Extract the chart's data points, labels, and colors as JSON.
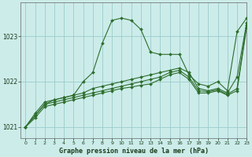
{
  "title": "Graphe pression niveau de la mer (hPa)",
  "background_color": "#ccecea",
  "grid_color": "#99ccca",
  "line_color": "#2d6e2d",
  "xlim": [
    -0.5,
    23
  ],
  "ylim": [
    1020.75,
    1023.75
  ],
  "yticks": [
    1021,
    1022,
    1023
  ],
  "xticks": [
    0,
    1,
    2,
    3,
    4,
    5,
    6,
    7,
    8,
    9,
    10,
    11,
    12,
    13,
    14,
    15,
    16,
    17,
    18,
    19,
    20,
    21,
    22,
    23
  ],
  "series": [
    [
      1021.0,
      1021.3,
      1021.55,
      1021.6,
      1021.65,
      1021.7,
      1022.0,
      1022.2,
      1022.85,
      1023.35,
      1023.4,
      1023.35,
      1023.15,
      1022.65,
      1022.6,
      1022.6,
      1022.6,
      1022.15,
      1021.95,
      1021.9,
      1022.0,
      1021.8,
      1023.1,
      1023.4
    ],
    [
      1021.0,
      1021.25,
      1021.5,
      1021.6,
      1021.65,
      1021.7,
      1021.75,
      1021.85,
      1021.9,
      1021.95,
      1022.0,
      1022.05,
      1022.1,
      1022.15,
      1022.2,
      1022.25,
      1022.3,
      1022.2,
      1021.85,
      1021.8,
      1021.85,
      1021.75,
      1022.1,
      1023.3
    ],
    [
      1021.0,
      1021.25,
      1021.5,
      1021.55,
      1021.6,
      1021.65,
      1021.7,
      1021.75,
      1021.8,
      1021.85,
      1021.9,
      1021.95,
      1022.0,
      1022.05,
      1022.1,
      1022.2,
      1022.25,
      1022.1,
      1021.8,
      1021.78,
      1021.82,
      1021.72,
      1021.85,
      1023.25
    ],
    [
      1021.0,
      1021.2,
      1021.45,
      1021.5,
      1021.55,
      1021.6,
      1021.65,
      1021.7,
      1021.75,
      1021.8,
      1021.85,
      1021.88,
      1021.92,
      1021.95,
      1022.05,
      1022.15,
      1022.2,
      1022.05,
      1021.75,
      1021.75,
      1021.8,
      1021.7,
      1021.8,
      1023.2
    ]
  ]
}
